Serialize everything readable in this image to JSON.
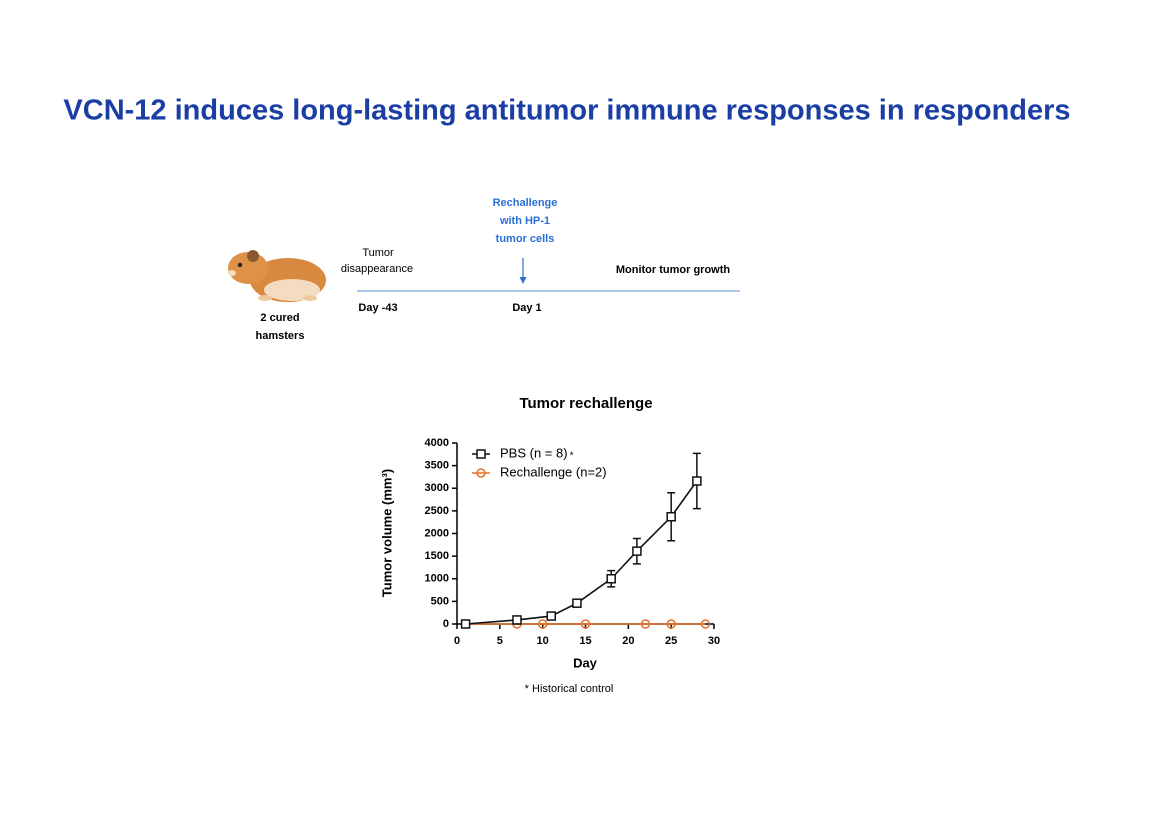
{
  "slide": {
    "title": "VCN-12 induces long-lasting antitumor immune responses in responders"
  },
  "timeline": {
    "subject": [
      "2 cured",
      "hamsters"
    ],
    "event1": [
      "Tumor",
      "disappearance"
    ],
    "rechallenge": [
      "Rechallenge",
      "with HP-1",
      "tumor cells"
    ],
    "monitor": "Monitor tumor growth",
    "day1": "Day -43",
    "day2": "Day 1"
  },
  "chart_data": {
    "type": "line",
    "title": "Tumor rechallenge",
    "x_label": "Day",
    "y_label": "Tumor volume (mm³)",
    "footnote": "* Historical control",
    "legend_note": "*",
    "xlim": [
      0,
      30
    ],
    "xticks": [
      0,
      5,
      10,
      15,
      20,
      25,
      30
    ],
    "ylim": [
      0,
      4000
    ],
    "yticks": [
      0,
      500,
      1000,
      1500,
      2000,
      2500,
      3000,
      3500,
      4000
    ],
    "legend": "upper left",
    "series": [
      {
        "name": "PBS (n = 8)",
        "color": "#111111",
        "marker": "square",
        "x": [
          1,
          7,
          11,
          14,
          18,
          21,
          25,
          28
        ],
        "values": [
          0,
          90,
          175,
          460,
          1000,
          1610,
          2370,
          3160
        ],
        "errors": [
          null,
          null,
          null,
          null,
          180,
          280,
          530,
          610
        ]
      },
      {
        "name": "Rechallenge (n=2)",
        "color": "#e8702a",
        "marker": "circle",
        "x": [
          1,
          7,
          10,
          15,
          22,
          25,
          29
        ],
        "values": [
          0,
          0,
          0,
          0,
          0,
          0,
          0
        ]
      }
    ]
  }
}
